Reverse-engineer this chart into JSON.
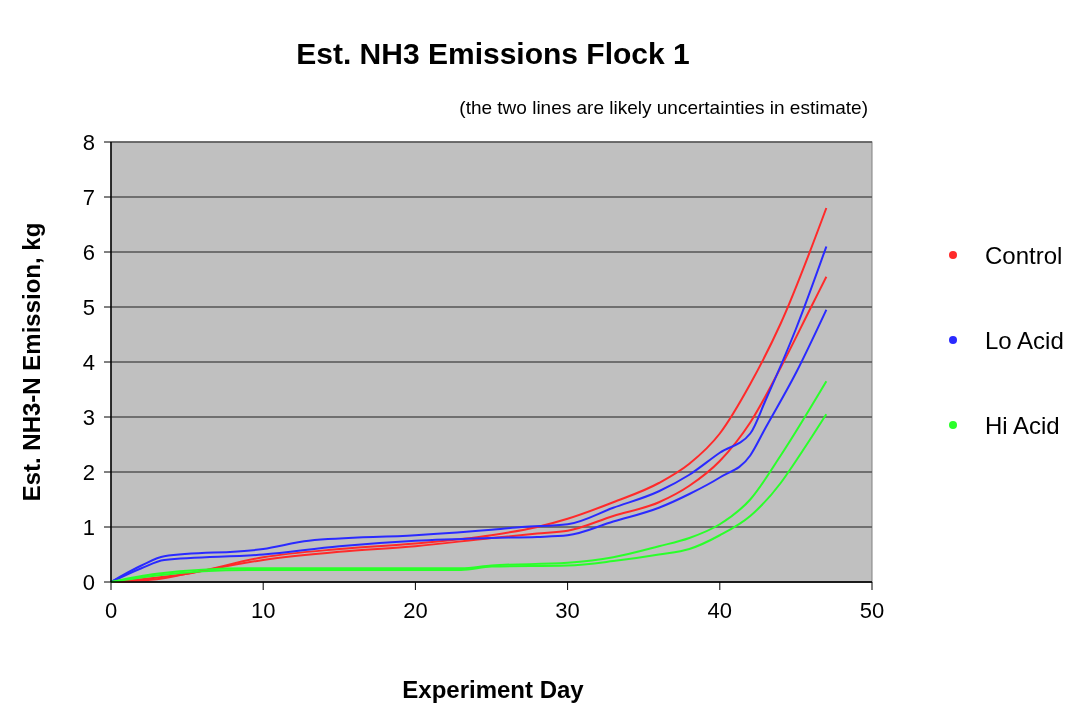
{
  "chart_data": {
    "type": "line",
    "title": "Est. NH3 Emissions Flock 1",
    "subtitle": "(the two lines are likely uncertainties in estimate)",
    "xlabel": "Experiment Day",
    "ylabel": "Est. NH3-N  Emission,  kg",
    "xlim": [
      0,
      50
    ],
    "xticks": [
      0,
      10,
      20,
      30,
      40,
      50
    ],
    "ylim": [
      0,
      8
    ],
    "yticks": [
      0,
      1,
      2,
      3,
      4,
      5,
      6,
      7,
      8
    ],
    "grid": "y",
    "legend": "right",
    "marker": "none",
    "line_style": "solid",
    "series": [
      {
        "name": "Control",
        "color": "#ff2a2a",
        "x": [
          0,
          2,
          5,
          10,
          15,
          20,
          25,
          28,
          30,
          33,
          36,
          38,
          40,
          42,
          44,
          47
        ],
        "values": [
          0,
          0.05,
          0.15,
          0.45,
          0.6,
          0.7,
          0.85,
          1.0,
          1.15,
          1.45,
          1.8,
          2.15,
          2.7,
          3.6,
          4.7,
          6.8
        ]
      },
      {
        "color": "#ff2a2a",
        "x": [
          0,
          3,
          5,
          10,
          15,
          20,
          25,
          28,
          30,
          33,
          36,
          38,
          40,
          42,
          44,
          46,
          47
        ],
        "values": [
          0,
          0.05,
          0.15,
          0.4,
          0.55,
          0.65,
          0.8,
          0.88,
          0.93,
          1.2,
          1.45,
          1.75,
          2.2,
          2.9,
          3.9,
          5.0,
          5.55
        ]
      },
      {
        "name": "Lo Acid",
        "color": "#2a2aff",
        "x": [
          0,
          2,
          3.5,
          10,
          13,
          20,
          25,
          27,
          30,
          33,
          36,
          38,
          40,
          42,
          43,
          45,
          47
        ],
        "values": [
          0,
          0.3,
          0.47,
          0.6,
          0.75,
          0.85,
          0.95,
          1.0,
          1.05,
          1.35,
          1.65,
          1.95,
          2.35,
          2.7,
          3.3,
          4.6,
          6.1
        ]
      },
      {
        "color": "#2a2aff",
        "x": [
          0,
          2,
          3.5,
          10,
          15,
          20,
          25,
          28,
          30,
          33,
          36,
          38,
          40,
          42,
          43,
          45,
          47
        ],
        "values": [
          0,
          0.25,
          0.4,
          0.5,
          0.65,
          0.75,
          0.8,
          0.82,
          0.85,
          1.1,
          1.35,
          1.6,
          1.9,
          2.3,
          2.8,
          3.8,
          4.95
        ]
      },
      {
        "name": "Hi Acid",
        "color": "#2aff2a",
        "x": [
          0,
          3,
          9,
          23,
          25,
          30,
          33,
          36,
          38,
          40,
          42,
          44,
          47
        ],
        "values": [
          0,
          0.15,
          0.25,
          0.25,
          0.3,
          0.35,
          0.45,
          0.65,
          0.8,
          1.05,
          1.5,
          2.3,
          3.65
        ]
      },
      {
        "color": "#2aff2a",
        "x": [
          0,
          3,
          9,
          23,
          25,
          30,
          33,
          36,
          38,
          40,
          42,
          44,
          45,
          47
        ],
        "values": [
          0,
          0.12,
          0.22,
          0.22,
          0.28,
          0.3,
          0.38,
          0.5,
          0.6,
          0.85,
          1.2,
          1.8,
          2.2,
          3.05
        ]
      }
    ]
  }
}
